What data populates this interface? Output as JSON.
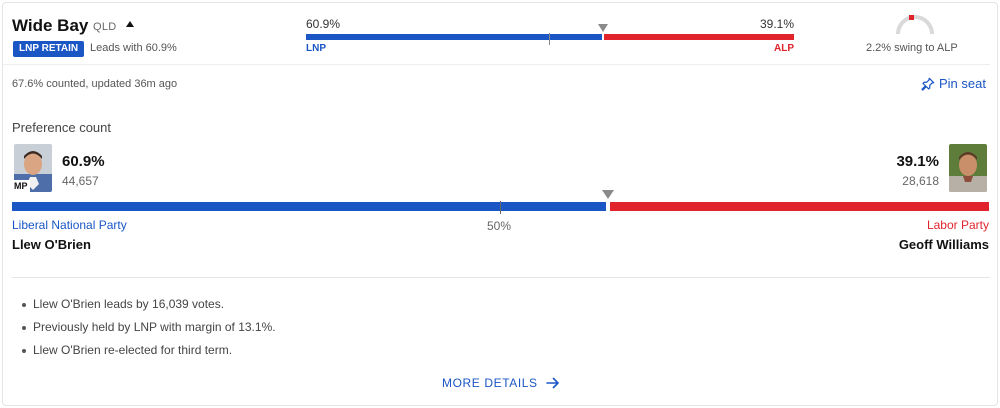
{
  "header": {
    "seat_name": "Wide Bay",
    "state": "QLD",
    "status_badge": "LNP RETAIN",
    "leads_text": "Leads with 60.9%"
  },
  "mini_result": {
    "left_pct": "60.9%",
    "right_pct": "39.1%",
    "left_party": "LNP",
    "right_party": "ALP",
    "left_share": 60.9,
    "right_share": 39.1
  },
  "swing": {
    "text": "2.2% swing to ALP",
    "value": 2.2
  },
  "status": {
    "counted_text": "67.6% counted, updated 36m ago",
    "pin_label": "Pin seat"
  },
  "preference": {
    "title": "Preference count",
    "midpoint_label": "50%",
    "candidates": [
      {
        "pct": "60.9%",
        "votes": "44,657",
        "party": "Liberal National Party",
        "name": "Llew O'Brien",
        "badge": "MP",
        "color": "#1a56c4"
      },
      {
        "pct": "39.1%",
        "votes": "28,618",
        "party": "Labor Party",
        "name": "Geoff Williams",
        "color": "#e1232b"
      }
    ]
  },
  "notes": [
    "Llew O'Brien leads by 16,039 votes.",
    "Previously held by LNP with margin of 13.1%.",
    "Llew O'Brien re-elected for third term."
  ],
  "footer": {
    "more_details_label": "MORE DETAILS"
  },
  "icons": {
    "caret": "caret-up-icon",
    "pin": "pin-icon",
    "arrow": "arrow-right-icon",
    "gauge": "swing-gauge-icon"
  },
  "colors": {
    "lnp": "#1a56c4",
    "alp": "#e1232b",
    "marker": "#8a8a8a"
  }
}
